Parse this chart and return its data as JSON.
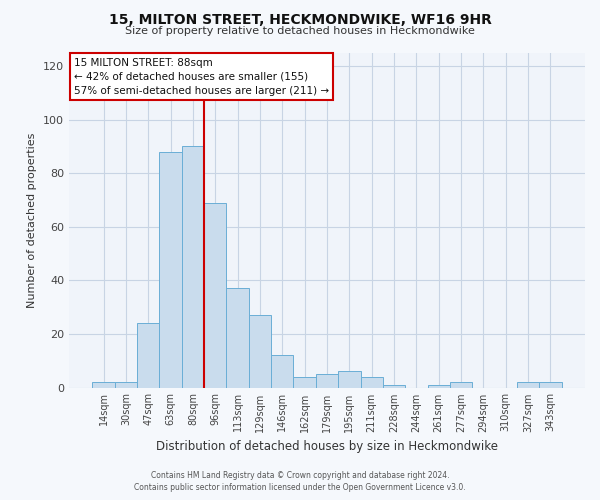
{
  "title": "15, MILTON STREET, HECKMONDWIKE, WF16 9HR",
  "subtitle": "Size of property relative to detached houses in Heckmondwike",
  "xlabel": "Distribution of detached houses by size in Heckmondwike",
  "ylabel": "Number of detached properties",
  "bar_labels": [
    "14sqm",
    "30sqm",
    "47sqm",
    "63sqm",
    "80sqm",
    "96sqm",
    "113sqm",
    "129sqm",
    "146sqm",
    "162sqm",
    "179sqm",
    "195sqm",
    "211sqm",
    "228sqm",
    "244sqm",
    "261sqm",
    "277sqm",
    "294sqm",
    "310sqm",
    "327sqm",
    "343sqm"
  ],
  "bar_values": [
    2,
    2,
    24,
    88,
    90,
    69,
    37,
    27,
    12,
    4,
    5,
    6,
    4,
    1,
    0,
    1,
    2,
    0,
    0,
    2,
    2
  ],
  "bar_color": "#c9dced",
  "bar_edge_color": "#6aaed6",
  "ylim": [
    0,
    125
  ],
  "yticks": [
    0,
    20,
    40,
    60,
    80,
    100,
    120
  ],
  "vline_color": "#cc0000",
  "vline_pos": 4.5,
  "annotation_title": "15 MILTON STREET: 88sqm",
  "annotation_line1": "← 42% of detached houses are smaller (155)",
  "annotation_line2": "57% of semi-detached houses are larger (211) →",
  "annotation_box_color": "#cc0000",
  "footer_line1": "Contains HM Land Registry data © Crown copyright and database right 2024.",
  "footer_line2": "Contains public sector information licensed under the Open Government Licence v3.0.",
  "bg_color": "#f5f8fc",
  "plot_bg_color": "#f0f4fa",
  "grid_color": "#c8d4e4"
}
